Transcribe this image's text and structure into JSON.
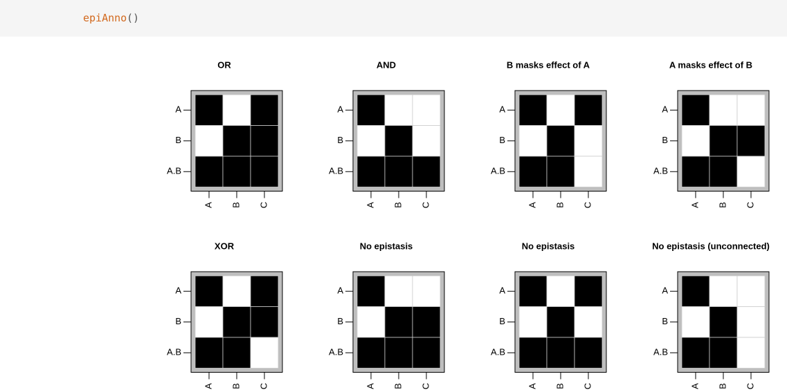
{
  "code": {
    "function": "epiAnno",
    "args": "()"
  },
  "panels": [
    {
      "title": "OR",
      "rows": [
        "A",
        "B",
        "A.B"
      ],
      "cols": [
        "A",
        "B",
        "C"
      ],
      "cells": [
        [
          1,
          0,
          1
        ],
        [
          0,
          1,
          1
        ],
        [
          1,
          1,
          1
        ]
      ]
    },
    {
      "title": "AND",
      "rows": [
        "A",
        "B",
        "A.B"
      ],
      "cols": [
        "A",
        "B",
        "C"
      ],
      "cells": [
        [
          1,
          0,
          0
        ],
        [
          0,
          1,
          0
        ],
        [
          1,
          1,
          1
        ]
      ]
    },
    {
      "title": "B masks effect of A",
      "rows": [
        "A",
        "B",
        "A.B"
      ],
      "cols": [
        "A",
        "B",
        "C"
      ],
      "cells": [
        [
          1,
          0,
          1
        ],
        [
          0,
          1,
          0
        ],
        [
          1,
          1,
          0
        ]
      ]
    },
    {
      "title": "A masks effect of B",
      "rows": [
        "A",
        "B",
        "A.B"
      ],
      "cols": [
        "A",
        "B",
        "C"
      ],
      "cells": [
        [
          1,
          0,
          0
        ],
        [
          0,
          1,
          1
        ],
        [
          1,
          1,
          0
        ]
      ]
    },
    {
      "title": "XOR",
      "rows": [
        "A",
        "B",
        "A.B"
      ],
      "cols": [
        "A",
        "B",
        "C"
      ],
      "cells": [
        [
          1,
          0,
          1
        ],
        [
          0,
          1,
          1
        ],
        [
          1,
          1,
          0
        ]
      ]
    },
    {
      "title": "No epistasis",
      "rows": [
        "A",
        "B",
        "A.B"
      ],
      "cols": [
        "A",
        "B",
        "C"
      ],
      "cells": [
        [
          1,
          0,
          0
        ],
        [
          0,
          1,
          1
        ],
        [
          1,
          1,
          1
        ]
      ]
    },
    {
      "title": "No epistasis",
      "rows": [
        "A",
        "B",
        "A.B"
      ],
      "cols": [
        "A",
        "B",
        "C"
      ],
      "cells": [
        [
          1,
          0,
          1
        ],
        [
          0,
          1,
          0
        ],
        [
          1,
          1,
          1
        ]
      ]
    },
    {
      "title": "No epistasis (unconnected)",
      "rows": [
        "A",
        "B",
        "A.B"
      ],
      "cols": [
        "A",
        "B",
        "C"
      ],
      "cells": [
        [
          1,
          0,
          0
        ],
        [
          0,
          1,
          0
        ],
        [
          1,
          1,
          0
        ]
      ]
    }
  ]
}
